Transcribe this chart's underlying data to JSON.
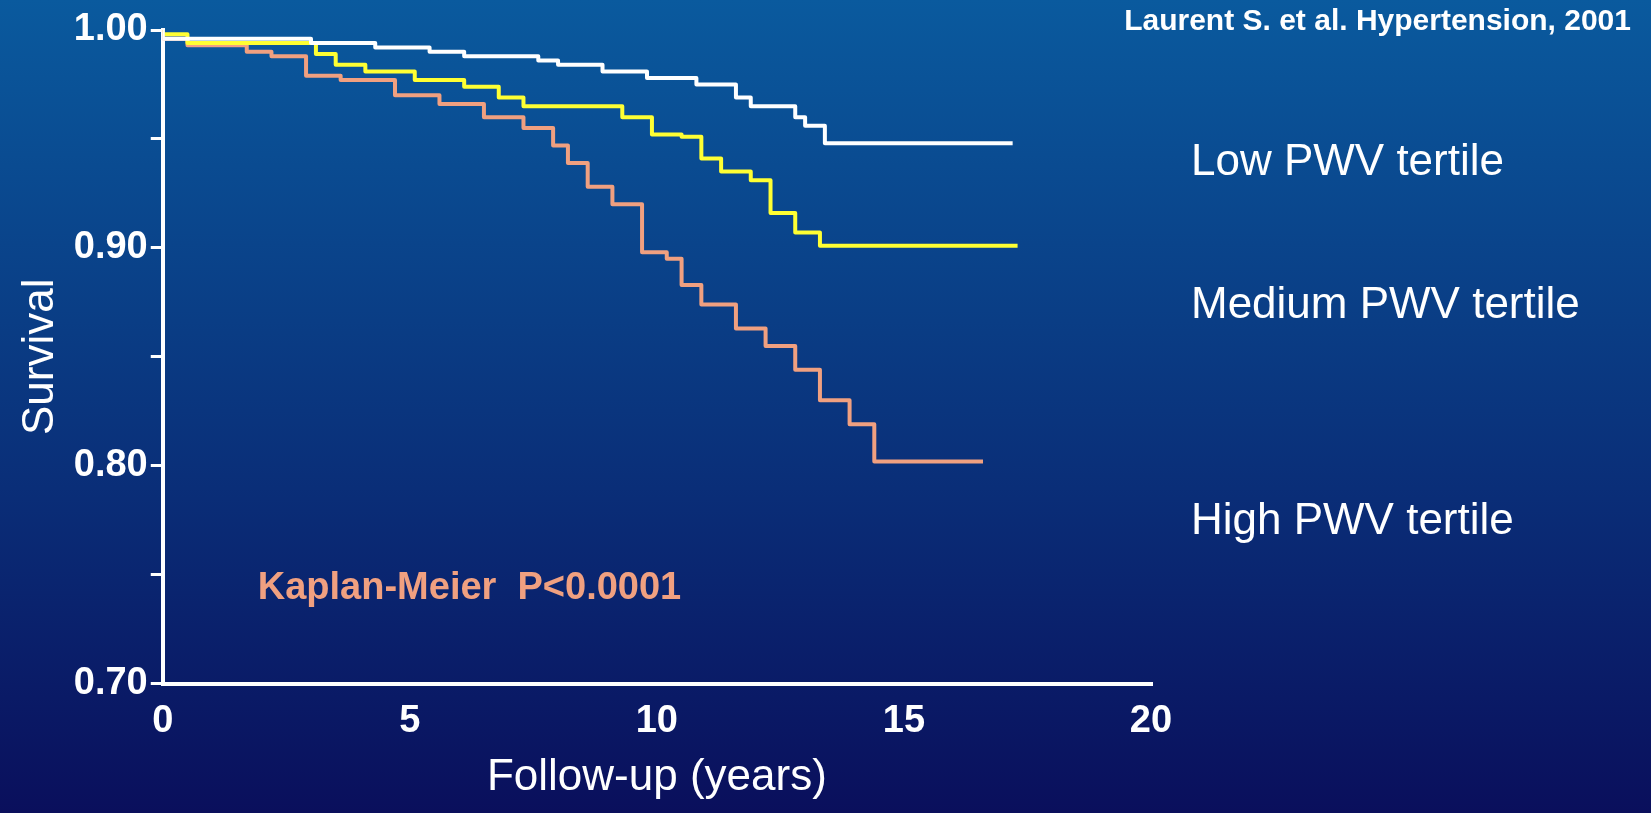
{
  "chart_data": {
    "type": "step",
    "xlabel": "Follow-up (years)",
    "ylabel": "Survival",
    "xlim": [
      0,
      20
    ],
    "xticks": [
      0,
      5,
      10,
      15,
      20
    ],
    "ylim": [
      0.7,
      1.0
    ],
    "yticks": [
      {
        "value": 0.7,
        "label": "0.70"
      },
      {
        "value": 0.75,
        "label": null
      },
      {
        "value": 0.8,
        "label": "0.80"
      },
      {
        "value": 0.85,
        "label": null
      },
      {
        "value": 0.9,
        "label": "0.90"
      },
      {
        "value": 0.95,
        "label": null
      },
      {
        "value": 1.0,
        "label": "1.00"
      }
    ],
    "grid": false,
    "legend": false,
    "marker": "none",
    "line_style": "solid",
    "annotations": [
      "Kaplan-Meier  P<0.0001",
      "Laurent S. et al. Hypertension, 2001"
    ],
    "series": [
      {
        "name": "Low PWV tertile",
        "color": "#ffffff",
        "x": [
          0,
          3.0,
          4.3,
          5.4,
          6.1,
          7.6,
          8.0,
          8.9,
          9.8,
          10.8,
          11.6,
          11.9,
          12.8,
          13.0,
          13.4,
          14.1,
          17.2
        ],
        "values": [
          1.0,
          0.996,
          0.994,
          0.992,
          0.99,
          0.988,
          0.986,
          0.984,
          0.981,
          0.978,
          0.975,
          0.969,
          0.965,
          0.96,
          0.956,
          0.948,
          0.948
        ]
      },
      {
        "name": "Medium PWV tertile",
        "color": "#ffff33",
        "x": [
          0,
          0.5,
          3.1,
          3.5,
          4.1,
          5.1,
          6.1,
          6.8,
          7.3,
          9.3,
          9.9,
          10.5,
          10.9,
          11.3,
          11.9,
          12.3,
          12.8,
          13.3,
          14.2,
          17.3
        ],
        "values": [
          1.0,
          0.998,
          0.994,
          0.989,
          0.984,
          0.981,
          0.977,
          0.974,
          0.969,
          0.965,
          0.96,
          0.952,
          0.951,
          0.941,
          0.935,
          0.931,
          0.916,
          0.907,
          0.901,
          0.901
        ]
      },
      {
        "name": "High PWV tertile",
        "color": "#f0a080",
        "x": [
          0,
          0.5,
          1.7,
          2.2,
          2.9,
          3.6,
          4.7,
          5.6,
          6.5,
          7.3,
          7.9,
          8.2,
          8.6,
          9.1,
          9.7,
          10.2,
          10.5,
          10.9,
          11.6,
          12.2,
          12.8,
          13.3,
          13.9,
          14.4,
          14.8,
          16.6
        ],
        "values": [
          1.0,
          0.996,
          0.993,
          0.99,
          0.988,
          0.979,
          0.977,
          0.97,
          0.966,
          0.96,
          0.955,
          0.947,
          0.939,
          0.928,
          0.92,
          0.898,
          0.895,
          0.883,
          0.874,
          0.863,
          0.855,
          0.844,
          0.83,
          0.819,
          0.802,
          0.802
        ]
      }
    ]
  }
}
